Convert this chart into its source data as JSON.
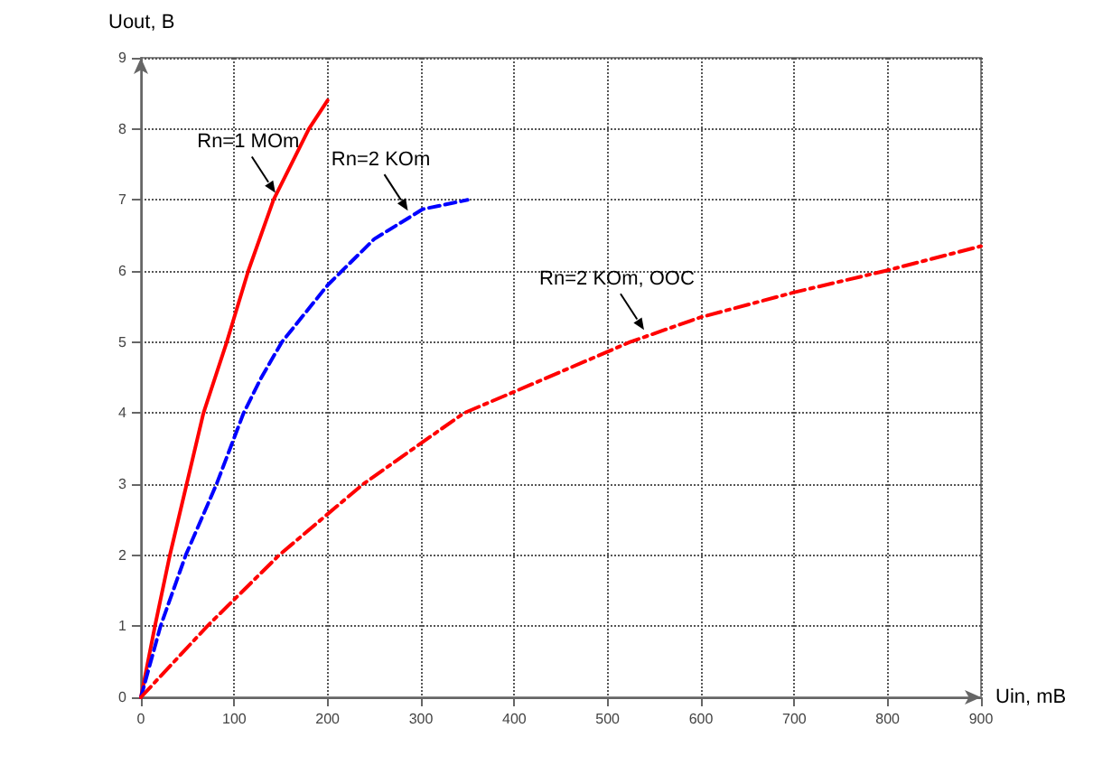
{
  "chart_data": {
    "type": "line",
    "xlabel": "Uin, mB",
    "ylabel": "Uout, B",
    "xlim": [
      0,
      900
    ],
    "xticks": [
      0,
      100,
      200,
      300,
      400,
      500,
      600,
      700,
      800,
      900
    ],
    "ylim": [
      0,
      9
    ],
    "yticks": [
      0,
      1,
      2,
      3,
      4,
      5,
      6,
      7,
      8,
      9
    ],
    "grid": true,
    "marker": "none",
    "series": [
      {
        "color": "#ff0000",
        "line_style": "solid",
        "x": [
          0,
          15,
          31,
          49,
          67,
          92,
          115,
          142,
          180,
          200
        ],
        "values": [
          0,
          1,
          2,
          3,
          4,
          5,
          6,
          7,
          8,
          8.4
        ]
      },
      {
        "color": "#0000ff",
        "line_style": "dashed",
        "x": [
          0,
          21,
          48,
          81,
          110,
          129,
          151,
          200,
          250,
          302,
          350
        ],
        "values": [
          0,
          1,
          2,
          3,
          4,
          4.5,
          5,
          5.8,
          6.45,
          6.87,
          7.0
        ]
      },
      {
        "color": "#ff0000",
        "line_style": "dashdot",
        "x": [
          0,
          71,
          148,
          238,
          346,
          400,
          524,
          600,
          700,
          797,
          900
        ],
        "values": [
          0,
          1,
          2,
          3,
          4,
          4.3,
          5,
          5.35,
          5.7,
          6,
          6.35
        ]
      }
    ],
    "annotations": [
      {
        "text": "Rn=1 MOm",
        "x": 144,
        "y": 7.1
      },
      {
        "text": "Rn=2 KOm",
        "x": 286,
        "y": 6.85
      },
      {
        "text": "Rn=2 KOm, OOC",
        "x": 539,
        "y": 5.17
      }
    ]
  }
}
